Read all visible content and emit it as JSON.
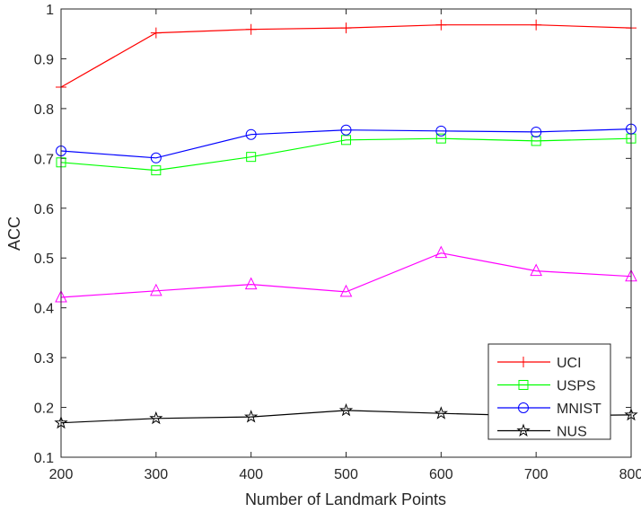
{
  "chart_data": {
    "type": "line",
    "title": "",
    "xlabel": "Number of Landmark Points",
    "ylabel": "ACC",
    "x": [
      200,
      300,
      400,
      500,
      600,
      700,
      800
    ],
    "xlim": [
      200,
      800
    ],
    "ylim": [
      0.1,
      1
    ],
    "xticks": [
      "200",
      "300",
      "400",
      "500",
      "600",
      "700",
      "800"
    ],
    "yticks": [
      "0.1",
      "0.2",
      "0.3",
      "0.4",
      "0.5",
      "0.6",
      "0.7",
      "0.8",
      "0.9",
      "1"
    ],
    "grid": false,
    "legend_placement": "bottom-right",
    "series": [
      {
        "name": "UCI",
        "color": "#ff0000",
        "marker": "plus",
        "values": [
          0.843,
          0.952,
          0.959,
          0.962,
          0.968,
          0.968,
          0.962
        ]
      },
      {
        "name": "USPS",
        "color": "#00ff00",
        "marker": "square",
        "values": [
          0.692,
          0.676,
          0.703,
          0.737,
          0.74,
          0.735,
          0.74
        ]
      },
      {
        "name": "MNIST",
        "color": "#0000ff",
        "marker": "circle",
        "values": [
          0.715,
          0.701,
          0.748,
          0.757,
          0.755,
          0.753,
          0.759
        ]
      },
      {
        "name": "",
        "color": "#ff00ff",
        "marker": "triangle",
        "values": [
          0.421,
          0.434,
          0.447,
          0.432,
          0.51,
          0.474,
          0.463
        ]
      },
      {
        "name": "NUS",
        "color": "#000000",
        "marker": "star",
        "values": [
          0.169,
          0.178,
          0.181,
          0.194,
          0.188,
          0.183,
          0.185
        ]
      }
    ]
  }
}
